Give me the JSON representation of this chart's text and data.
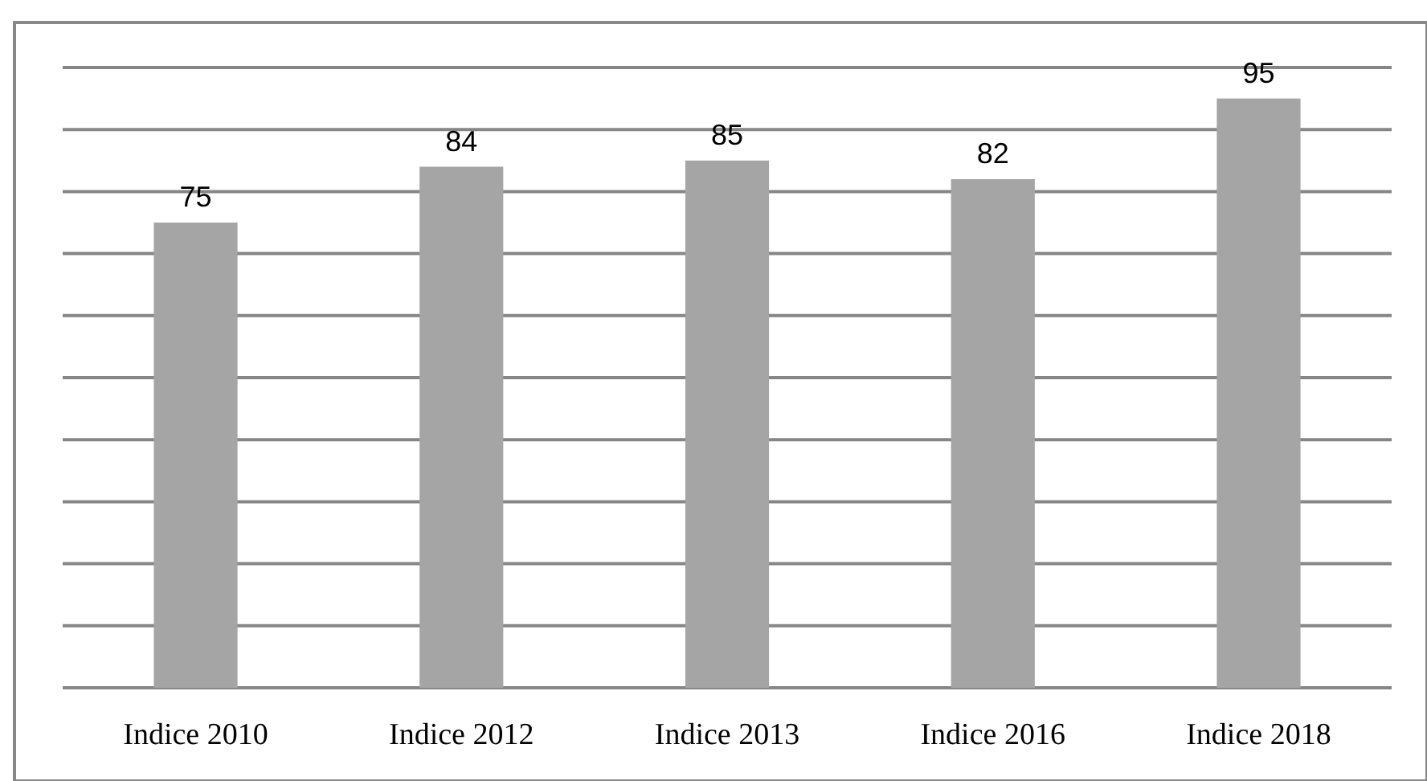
{
  "chart_data": {
    "type": "bar",
    "categories": [
      "Indice 2010",
      "Indice 2012",
      "Indice 2013",
      "Indice 2016",
      "Indice 2018"
    ],
    "values": [
      75,
      84,
      85,
      82,
      95
    ],
    "color": "#a5a5a5",
    "ylim": [
      0,
      100
    ],
    "yticks": [
      {
        "value": 0,
        "label": null
      },
      {
        "value": 10,
        "label": null
      },
      {
        "value": 20,
        "label": null
      },
      {
        "value": 30,
        "label": null
      },
      {
        "value": 40,
        "label": null
      },
      {
        "value": 50,
        "label": null
      },
      {
        "value": 60,
        "label": null
      },
      {
        "value": 70,
        "label": null
      },
      {
        "value": 80,
        "label": null
      },
      {
        "value": 90,
        "label": null
      },
      {
        "value": 100,
        "label": null
      }
    ],
    "grid": "y",
    "tick_labels": "x",
    "data_labels": true
  }
}
